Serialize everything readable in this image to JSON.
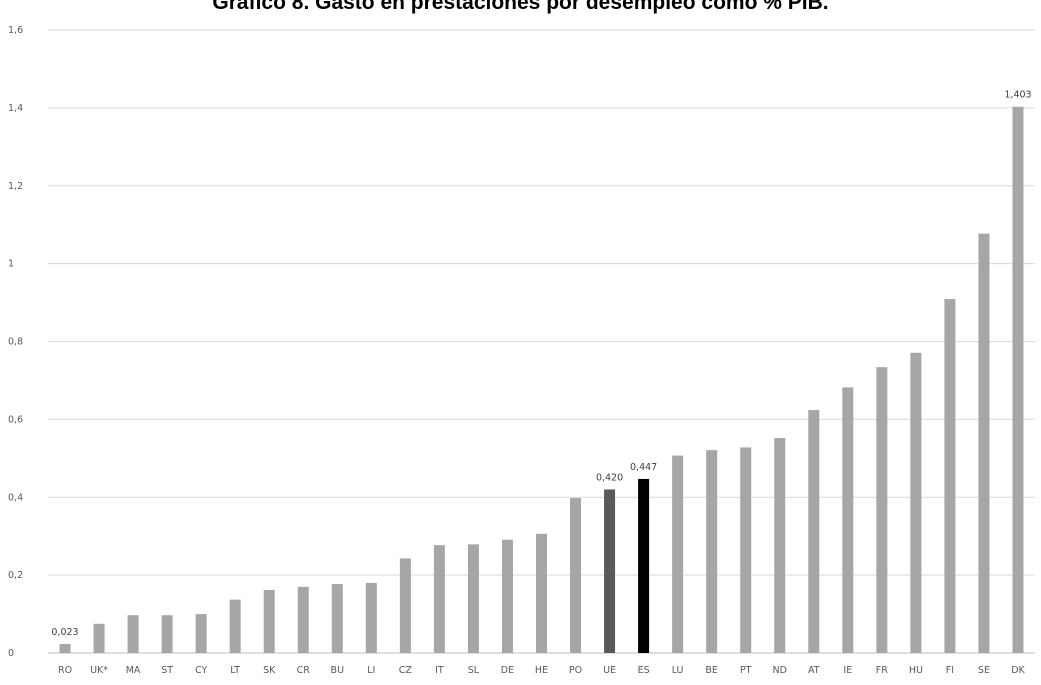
{
  "chart_data": {
    "type": "bar",
    "title": "Gráfico 8. Gasto en prestaciones por desempleo como % PIB.",
    "xlabel": "",
    "ylabel": "",
    "ylim": [
      0,
      1.6
    ],
    "yticks": [
      "0",
      "0,2",
      "0,4",
      "0,6",
      "0,8",
      "1",
      "1,2",
      "1,4",
      "1,6"
    ],
    "grid": true,
    "categories": [
      "RO",
      "UK*",
      "MA",
      "ST",
      "CY",
      "LT",
      "SK",
      "CR",
      "BU",
      "LI",
      "CZ",
      "IT",
      "SL",
      "DE",
      "HE",
      "PO",
      "UE",
      "ES",
      "LU",
      "BE",
      "PT",
      "ND",
      "AT",
      "IE",
      "FR",
      "HU",
      "FI",
      "SE",
      "DK"
    ],
    "values": [
      0.023,
      0.075,
      0.097,
      0.097,
      0.1,
      0.137,
      0.162,
      0.17,
      0.177,
      0.18,
      0.243,
      0.277,
      0.279,
      0.291,
      0.306,
      0.398,
      0.42,
      0.447,
      0.507,
      0.521,
      0.528,
      0.552,
      0.624,
      0.682,
      0.734,
      0.771,
      0.909,
      1.077,
      1.403
    ],
    "data_labels": {
      "RO": "0,023",
      "UE": "0,420",
      "ES": "0,447",
      "DK": "1,403"
    },
    "colors": {
      "default": "#a6a6a6",
      "UE": "#595959",
      "ES": "#000000",
      "grid": "#d9d9d9",
      "axis": "#bfbfbf"
    }
  }
}
